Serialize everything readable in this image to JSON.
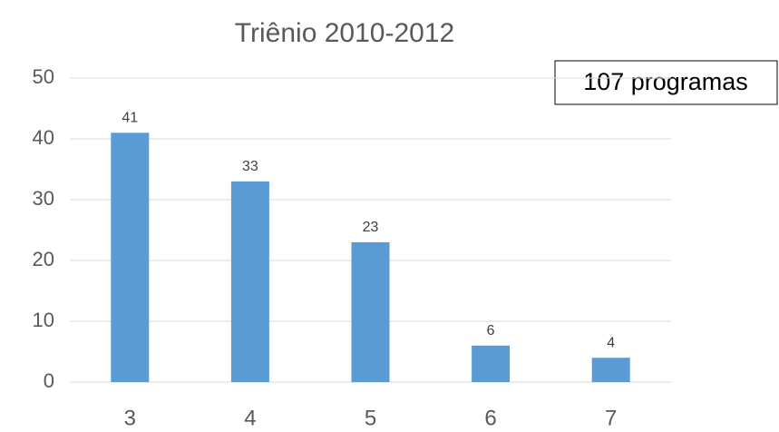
{
  "chart_data": {
    "type": "bar",
    "title": "Triênio 2010-2012",
    "annotation": "107 programas",
    "categories": [
      "3",
      "4",
      "5",
      "6",
      "7"
    ],
    "values": [
      41,
      33,
      23,
      6,
      4
    ],
    "color": "#5b9bd5",
    "ylim": [
      0,
      50
    ],
    "yticks": [
      0,
      10,
      20,
      30,
      40,
      50
    ],
    "grid": true
  }
}
